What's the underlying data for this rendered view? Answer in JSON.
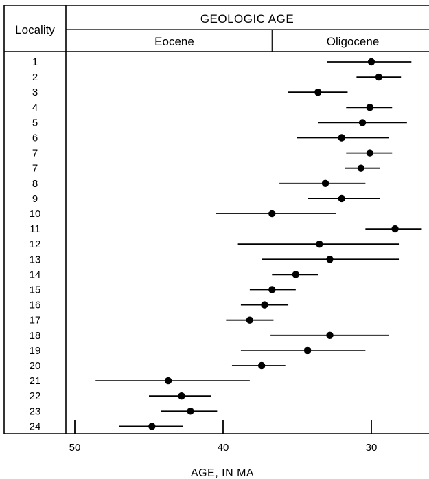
{
  "header": {
    "locality_label": "Locality",
    "geologic_age_label": "GEOLOGIC AGE",
    "epochs": [
      "Eocene",
      "Oligocene"
    ]
  },
  "chart_data": {
    "type": "scatter",
    "title": "",
    "xlabel": "AGE, IN MA",
    "ylabel": "Locality",
    "x_ticks": [
      50,
      40,
      30
    ],
    "xlim": [
      51,
      26.5
    ],
    "epoch_boundary_ma": 36.7,
    "epochs": [
      "Eocene",
      "Oligocene"
    ],
    "points": [
      {
        "locality": "1",
        "age": 30.0,
        "low": 27.3,
        "high": 33.0
      },
      {
        "locality": "2",
        "age": 29.5,
        "low": 28.0,
        "high": 31.0
      },
      {
        "locality": "3",
        "age": 33.6,
        "low": 31.6,
        "high": 35.6
      },
      {
        "locality": "4",
        "age": 30.1,
        "low": 28.6,
        "high": 31.7
      },
      {
        "locality": "5",
        "age": 30.6,
        "low": 27.6,
        "high": 33.6
      },
      {
        "locality": "6",
        "age": 32.0,
        "low": 28.8,
        "high": 35.0
      },
      {
        "locality": "7",
        "age": 30.1,
        "low": 28.6,
        "high": 31.7
      },
      {
        "locality": "7",
        "age": 30.7,
        "low": 29.4,
        "high": 31.8
      },
      {
        "locality": "8",
        "age": 33.1,
        "low": 30.4,
        "high": 36.2
      },
      {
        "locality": "9",
        "age": 32.0,
        "low": 29.4,
        "high": 34.3
      },
      {
        "locality": "10",
        "age": 36.7,
        "low": 32.4,
        "high": 40.5
      },
      {
        "locality": "11",
        "age": 28.4,
        "low": 26.6,
        "high": 30.4
      },
      {
        "locality": "12",
        "age": 33.5,
        "low": 28.1,
        "high": 39.0
      },
      {
        "locality": "13",
        "age": 32.8,
        "low": 28.1,
        "high": 37.4
      },
      {
        "locality": "14",
        "age": 35.1,
        "low": 33.6,
        "high": 36.7
      },
      {
        "locality": "15",
        "age": 36.7,
        "low": 35.1,
        "high": 38.2
      },
      {
        "locality": "16",
        "age": 37.2,
        "low": 35.6,
        "high": 38.8
      },
      {
        "locality": "17",
        "age": 38.2,
        "low": 36.6,
        "high": 39.8
      },
      {
        "locality": "18",
        "age": 32.8,
        "low": 28.8,
        "high": 36.8
      },
      {
        "locality": "19",
        "age": 34.3,
        "low": 30.4,
        "high": 38.8
      },
      {
        "locality": "20",
        "age": 37.4,
        "low": 35.8,
        "high": 39.4
      },
      {
        "locality": "21",
        "age": 43.7,
        "low": 38.2,
        "high": 48.6
      },
      {
        "locality": "22",
        "age": 42.8,
        "low": 40.8,
        "high": 45.0
      },
      {
        "locality": "23",
        "age": 42.2,
        "low": 40.4,
        "high": 44.2
      },
      {
        "locality": "24",
        "age": 44.8,
        "low": 42.7,
        "high": 47.0
      }
    ]
  }
}
